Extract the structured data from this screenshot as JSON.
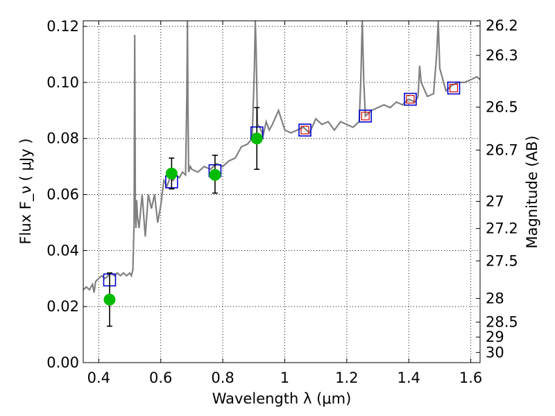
{
  "chart_data": {
    "type": "scatter",
    "title": "",
    "xlabel": "Wavelength  λ (μm)",
    "ylabel": "Flux  F_ν  ( μJy )",
    "ylabel_right": "Magnitude (AB)",
    "xlim": [
      0.35,
      1.63
    ],
    "ylim": [
      0.0,
      0.122
    ],
    "grid": true,
    "colors": {
      "spectrum": "#808080",
      "model_box": "#0000cc",
      "model_inner": "#cc0000",
      "observed": "#00bb00",
      "error_bar": "#000000"
    },
    "x_ticks": [
      {
        "value": 0.4,
        "label": "0.4"
      },
      {
        "value": 0.6,
        "label": "0.6"
      },
      {
        "value": 0.8,
        "label": "0.8"
      },
      {
        "value": 1.0,
        "label": "1"
      },
      {
        "value": 1.2,
        "label": "1.2"
      },
      {
        "value": 1.4,
        "label": "1.4"
      },
      {
        "value": 1.6,
        "label": "1.6"
      }
    ],
    "y_ticks": [
      {
        "value": 0.0,
        "label": "0.00"
      },
      {
        "value": 0.02,
        "label": "0.02"
      },
      {
        "value": 0.04,
        "label": "0.04"
      },
      {
        "value": 0.06,
        "label": "0.06"
      },
      {
        "value": 0.08,
        "label": "0.08"
      },
      {
        "value": 0.1,
        "label": "0.10"
      },
      {
        "value": 0.12,
        "label": "0.12"
      }
    ],
    "mag_ticks": [
      {
        "value": 26.2,
        "label": "26.2"
      },
      {
        "value": 26.3,
        "label": "26.3"
      },
      {
        "value": 26.5,
        "label": "26.5"
      },
      {
        "value": 26.7,
        "label": "26.7"
      },
      {
        "value": 27.0,
        "label": "27"
      },
      {
        "value": 27.2,
        "label": "27.2"
      },
      {
        "value": 27.5,
        "label": "27.5"
      },
      {
        "value": 28.0,
        "label": "28"
      },
      {
        "value": 28.5,
        "label": "28.5"
      },
      {
        "value": 29.0,
        "label": "29"
      },
      {
        "value": 30.0,
        "label": "30"
      }
    ],
    "observed_points": [
      {
        "x": 0.435,
        "y": 0.0225,
        "err_low": 0.013,
        "err_high": 0.032
      },
      {
        "x": 0.635,
        "y": 0.0675,
        "err_low": 0.062,
        "err_high": 0.073
      },
      {
        "x": 0.775,
        "y": 0.067,
        "err_low": 0.0605,
        "err_high": 0.074
      },
      {
        "x": 0.91,
        "y": 0.08,
        "err_low": 0.069,
        "err_high": 0.091
      }
    ],
    "model_points": [
      {
        "x": 0.435,
        "y": 0.0295,
        "inner": false
      },
      {
        "x": 0.635,
        "y": 0.0645,
        "inner": false
      },
      {
        "x": 0.775,
        "y": 0.0685,
        "inner": false
      },
      {
        "x": 0.91,
        "y": 0.082,
        "inner": false
      },
      {
        "x": 1.065,
        "y": 0.083,
        "inner": true
      },
      {
        "x": 1.26,
        "y": 0.088,
        "inner": true
      },
      {
        "x": 1.405,
        "y": 0.094,
        "inner": true
      },
      {
        "x": 1.545,
        "y": 0.098,
        "inner": true
      }
    ],
    "spectrum": {
      "x": [
        0.35,
        0.36,
        0.37,
        0.38,
        0.385,
        0.39,
        0.4,
        0.41,
        0.42,
        0.43,
        0.44,
        0.45,
        0.46,
        0.47,
        0.48,
        0.49,
        0.5,
        0.505,
        0.51,
        0.514,
        0.516,
        0.518,
        0.52,
        0.522,
        0.525,
        0.53,
        0.54,
        0.55,
        0.56,
        0.57,
        0.58,
        0.59,
        0.6,
        0.61,
        0.62,
        0.63,
        0.64,
        0.65,
        0.66,
        0.67,
        0.68,
        0.684,
        0.686,
        0.688,
        0.69,
        0.695,
        0.7,
        0.72,
        0.74,
        0.76,
        0.78,
        0.8,
        0.82,
        0.84,
        0.86,
        0.88,
        0.895,
        0.902,
        0.905,
        0.908,
        0.912,
        0.92,
        0.93,
        0.94,
        0.95,
        0.96,
        0.98,
        1.0,
        1.02,
        1.04,
        1.06,
        1.08,
        1.1,
        1.12,
        1.14,
        1.16,
        1.18,
        1.2,
        1.22,
        1.24,
        1.245,
        1.25,
        1.255,
        1.26,
        1.28,
        1.3,
        1.32,
        1.34,
        1.36,
        1.38,
        1.4,
        1.42,
        1.43,
        1.435,
        1.44,
        1.46,
        1.48,
        1.49,
        1.495,
        1.5,
        1.52,
        1.54,
        1.56,
        1.58,
        1.6,
        1.62,
        1.63
      ],
      "y": [
        0.026,
        0.027,
        0.026,
        0.028,
        0.025,
        0.029,
        0.03,
        0.031,
        0.03,
        0.031,
        0.032,
        0.031,
        0.032,
        0.031,
        0.032,
        0.031,
        0.032,
        0.031,
        0.033,
        0.05,
        0.117,
        0.055,
        0.048,
        0.058,
        0.052,
        0.048,
        0.06,
        0.045,
        0.06,
        0.055,
        0.06,
        0.05,
        0.056,
        0.065,
        0.063,
        0.066,
        0.065,
        0.067,
        0.066,
        0.068,
        0.067,
        0.095,
        0.122,
        0.09,
        0.068,
        0.07,
        0.069,
        0.068,
        0.07,
        0.069,
        0.071,
        0.07,
        0.072,
        0.073,
        0.077,
        0.078,
        0.08,
        0.105,
        0.122,
        0.11,
        0.085,
        0.084,
        0.081,
        0.086,
        0.083,
        0.085,
        0.09,
        0.083,
        0.082,
        0.083,
        0.084,
        0.082,
        0.087,
        0.085,
        0.086,
        0.083,
        0.086,
        0.085,
        0.084,
        0.086,
        0.1,
        0.122,
        0.1,
        0.088,
        0.09,
        0.091,
        0.092,
        0.091,
        0.093,
        0.092,
        0.094,
        0.093,
        0.095,
        0.106,
        0.1,
        0.095,
        0.096,
        0.11,
        0.122,
        0.105,
        0.097,
        0.099,
        0.1,
        0.1,
        0.101,
        0.102,
        0.101
      ]
    }
  }
}
